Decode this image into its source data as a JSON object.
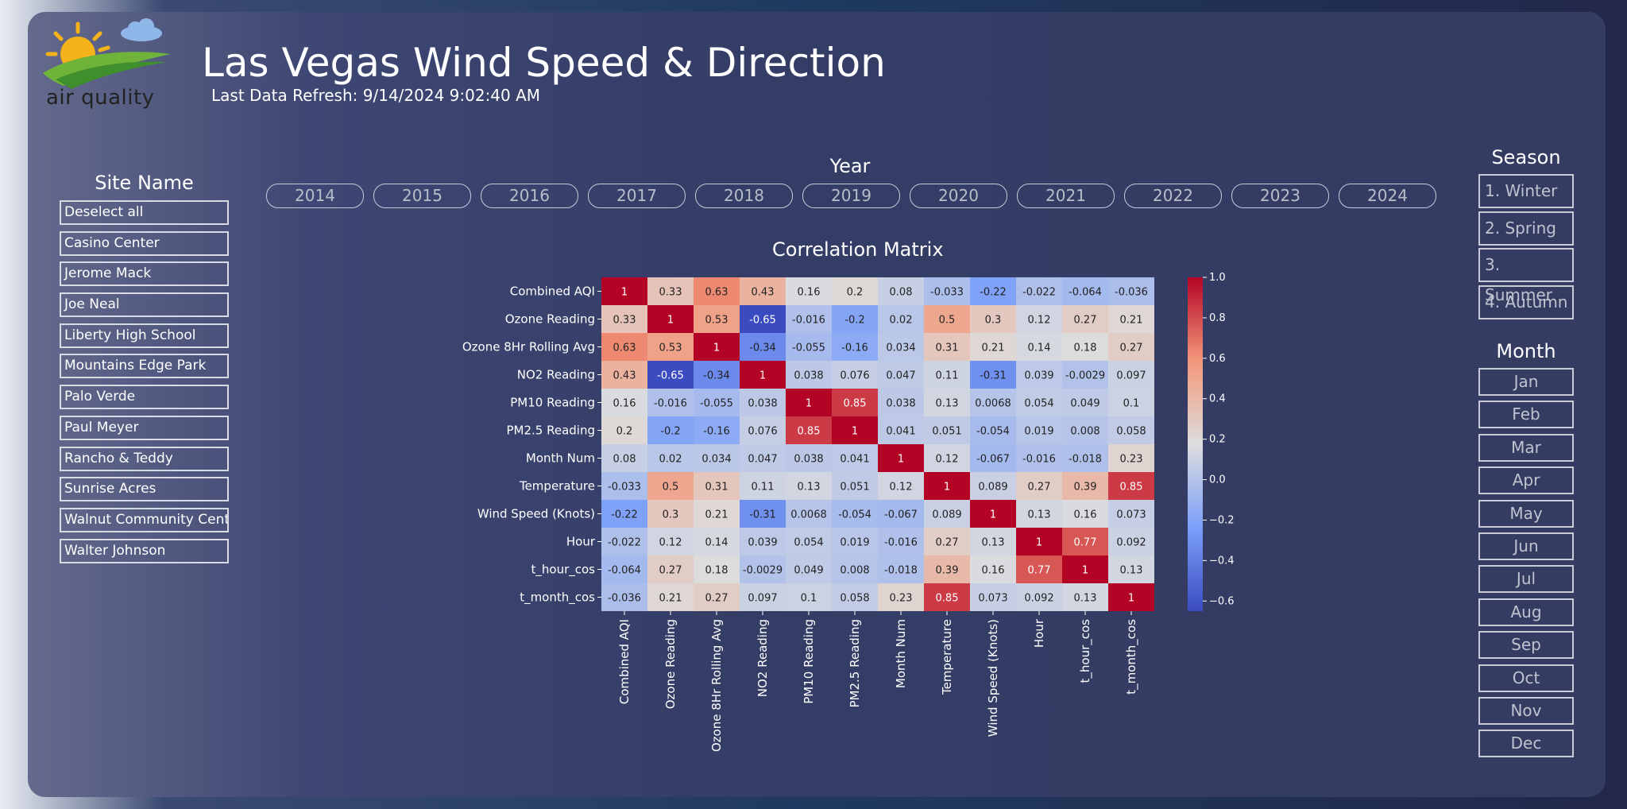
{
  "header": {
    "logo_text": "air quality",
    "title": "Las Vegas Wind Speed & Direction",
    "refresh": "Last Data Refresh: 9/14/2024 9:02:40 AM"
  },
  "site_filter": {
    "title": "Site Name",
    "items": [
      "Deselect all",
      "Casino Center",
      "Jerome Mack",
      "Joe Neal",
      "Liberty High School",
      "Mountains Edge Park",
      "Palo Verde",
      "Paul Meyer",
      "Rancho & Teddy",
      "Sunrise Acres",
      "Walnut Community Center",
      "Walter Johnson"
    ]
  },
  "year_filter": {
    "title": "Year",
    "items": [
      "2014",
      "2015",
      "2016",
      "2017",
      "2018",
      "2019",
      "2020",
      "2021",
      "2022",
      "2023",
      "2024"
    ]
  },
  "season_filter": {
    "title": "Season",
    "items": [
      "1. Winter",
      "2. Spring",
      "3. Summer",
      "4. Autumn"
    ]
  },
  "month_filter": {
    "title": "Month",
    "items": [
      "Jan",
      "Feb",
      "Mar",
      "Apr",
      "May",
      "Jun",
      "Jul",
      "Aug",
      "Sep",
      "Oct",
      "Nov",
      "Dec"
    ]
  },
  "chart_data": {
    "type": "heatmap",
    "title": "Correlation Matrix",
    "labels": [
      "Combined AQI",
      "Ozone Reading",
      "Ozone 8Hr Rolling Avg",
      "NO2 Reading",
      "PM10 Reading",
      "PM2.5 Reading",
      "Month Num",
      "Temperature",
      "Wind Speed (Knots)",
      "Hour",
      "t_hour_cos",
      "t_month_cos"
    ],
    "values": [
      [
        1,
        0.33,
        0.63,
        0.43,
        0.16,
        0.2,
        0.08,
        -0.033,
        -0.22,
        -0.022,
        -0.064,
        -0.036
      ],
      [
        0.33,
        1,
        0.53,
        -0.65,
        -0.016,
        -0.2,
        0.02,
        0.5,
        0.3,
        0.12,
        0.27,
        0.21
      ],
      [
        0.63,
        0.53,
        1,
        -0.34,
        -0.055,
        -0.16,
        0.034,
        0.31,
        0.21,
        0.14,
        0.18,
        0.27
      ],
      [
        0.43,
        -0.65,
        -0.34,
        1,
        0.038,
        0.076,
        0.047,
        0.11,
        -0.31,
        0.039,
        -0.0029,
        0.097
      ],
      [
        0.16,
        -0.016,
        -0.055,
        0.038,
        1,
        0.85,
        0.038,
        0.13,
        0.0068,
        0.054,
        0.049,
        0.1
      ],
      [
        0.2,
        -0.2,
        -0.16,
        0.076,
        0.85,
        1,
        0.041,
        0.051,
        -0.054,
        0.019,
        0.008,
        0.058
      ],
      [
        0.08,
        0.02,
        0.034,
        0.047,
        0.038,
        0.041,
        1,
        0.12,
        -0.067,
        -0.016,
        -0.018,
        0.23
      ],
      [
        -0.033,
        0.5,
        0.31,
        0.11,
        0.13,
        0.051,
        0.12,
        1,
        0.089,
        0.27,
        0.39,
        0.85
      ],
      [
        -0.22,
        0.3,
        0.21,
        -0.31,
        0.0068,
        -0.054,
        -0.067,
        0.089,
        1,
        0.13,
        0.16,
        0.073
      ],
      [
        -0.022,
        0.12,
        0.14,
        0.039,
        0.054,
        0.019,
        -0.016,
        0.27,
        0.13,
        1,
        0.77,
        0.092
      ],
      [
        -0.064,
        0.27,
        0.18,
        -0.0029,
        0.049,
        0.008,
        -0.018,
        0.39,
        0.16,
        0.77,
        1,
        0.13
      ],
      [
        -0.036,
        0.21,
        0.27,
        0.097,
        0.1,
        0.058,
        0.23,
        0.85,
        0.073,
        0.092,
        0.13,
        1
      ]
    ],
    "colorbar": {
      "min": -0.65,
      "max": 1.0,
      "ticks": [
        1.0,
        0.8,
        0.6,
        0.4,
        0.2,
        0.0,
        -0.2,
        -0.4,
        -0.6
      ],
      "tick_labels": [
        "1.0",
        "0.8",
        "0.6",
        "0.4",
        "0.2",
        "0.0",
        "−0.2",
        "−0.4",
        "−0.6"
      ],
      "colormap": "coolwarm"
    }
  }
}
